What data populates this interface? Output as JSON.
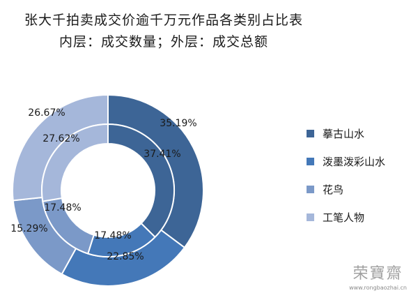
{
  "title_line1": "张大千拍卖成交价逾千万元作品各类别占比表",
  "title_line2": "内层：成交数量；外层：成交总额",
  "chart_data": {
    "type": "donut",
    "categories": [
      "摹古山水",
      "泼墨泼彩山水",
      "花鸟",
      "工笔人物"
    ],
    "colors": [
      "#3d6596",
      "#4478b8",
      "#7b99c8",
      "#a5b7da"
    ],
    "inner_ring": {
      "name": "成交数量",
      "values": [
        37.41,
        17.48,
        17.48,
        27.62
      ]
    },
    "outer_ring": {
      "name": "成交总额",
      "values": [
        35.19,
        22.85,
        15.29,
        26.67
      ]
    },
    "value_suffix": "%",
    "legend_position": "right"
  },
  "legend": [
    "摹古山水",
    "泼墨泼彩山水",
    "花鸟",
    "工笔人物"
  ],
  "watermark": {
    "logo": "荣寶齋",
    "url": "www.rongbaozhai.cn"
  }
}
